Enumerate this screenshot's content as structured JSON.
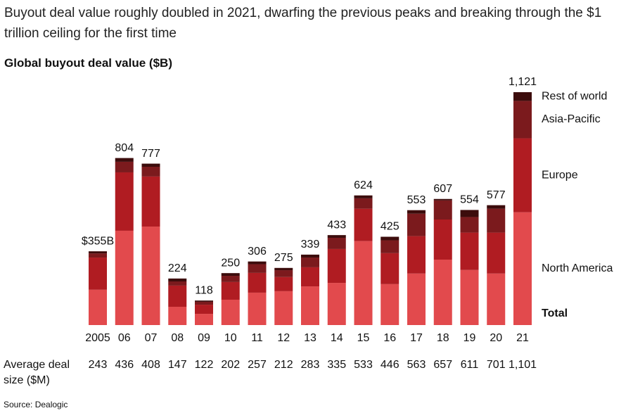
{
  "chart_data": {
    "type": "stacked_bar",
    "title": "Buyout deal value roughly doubled in 2021, dwarfing the previous peaks and breaking through the $1 trillion ceiling for the first time",
    "subtitle": "Global buyout deal value ($B)",
    "categories": [
      "2005",
      "06",
      "07",
      "08",
      "09",
      "10",
      "11",
      "12",
      "13",
      "14",
      "15",
      "16",
      "17",
      "18",
      "19",
      "20",
      "21"
    ],
    "series": [
      {
        "name": "North America",
        "color": "#e24a4d",
        "values": [
          170,
          454,
          474,
          88,
          54,
          122,
          156,
          163,
          186,
          203,
          404,
          197,
          248,
          315,
          265,
          248,
          543
        ]
      },
      {
        "name": "Europe",
        "color": "#b01c22",
        "values": [
          155,
          281,
          241,
          102,
          44,
          85,
          95,
          68,
          92,
          163,
          156,
          149,
          180,
          193,
          180,
          197,
          356
        ]
      },
      {
        "name": "Asia-Pacific",
        "color": "#7b1a1d",
        "values": [
          20,
          51,
          47,
          20,
          14,
          30,
          42,
          33,
          47,
          54,
          50,
          62,
          108,
          92,
          75,
          115,
          180
        ]
      },
      {
        "name": "Rest of world",
        "color": "#3c0c0c",
        "values": [
          10,
          18,
          15,
          14,
          6,
          13,
          13,
          11,
          14,
          13,
          14,
          17,
          17,
          7,
          34,
          17,
          42
        ]
      }
    ],
    "totals": {
      "name": "Total",
      "values": [
        355,
        804,
        777,
        224,
        118,
        250,
        306,
        275,
        339,
        433,
        624,
        425,
        553,
        607,
        554,
        577,
        1121
      ],
      "value_labels": [
        "$355B",
        "804",
        "777",
        "224",
        "118",
        "250",
        "306",
        "275",
        "339",
        "433",
        "624",
        "425",
        "553",
        "607",
        "554",
        "577",
        "1,121"
      ]
    },
    "avg_deal_size": {
      "label": "Average deal size ($M)",
      "values": [
        243,
        436,
        408,
        147,
        122,
        202,
        257,
        212,
        283,
        335,
        533,
        446,
        563,
        657,
        611,
        701,
        1101
      ],
      "value_labels": [
        "243",
        "436",
        "408",
        "147",
        "122",
        "202",
        "257",
        "212",
        "283",
        "335",
        "533",
        "446",
        "563",
        "657",
        "611",
        "701",
        "1,101"
      ]
    },
    "ylim": [
      0,
      1150
    ],
    "source": "Source: Dealogic"
  }
}
